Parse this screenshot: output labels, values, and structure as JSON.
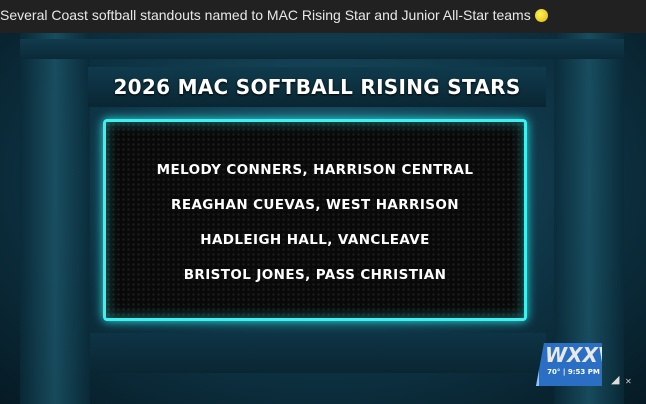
{
  "header": {
    "title": "Several Coast softball standouts named to MAC Rising Star and Junior All-Star teams",
    "emoji": "softball-icon"
  },
  "graphic": {
    "title": "2026 MAC SOFTBALL RISING STARS",
    "names": [
      "MELODY CONNERS, HARRISON CENTRAL",
      "REAGHAN CUEVAS, WEST HARRISON",
      "HADLEIGH HALL, VANCLEAVE",
      "BRISTOL JONES, PASS CHRISTIAN"
    ],
    "accent": "#3ef0f0"
  },
  "bug": {
    "station": "WXXV",
    "temp": "70°",
    "time": "9:53 PM"
  },
  "controls": {
    "mute_icon": "speaker-muted-icon"
  }
}
